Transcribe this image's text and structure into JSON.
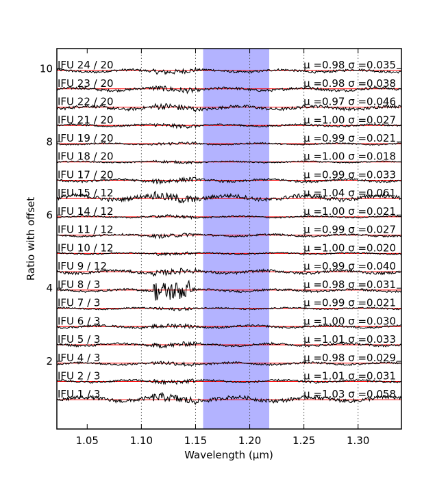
{
  "chart_data": {
    "type": "line",
    "title": "",
    "xlabel": "Wavelength (μm)",
    "ylabel": "Ratio with offset",
    "xlim": [
      1.022,
      1.34
    ],
    "ylim": [
      0.15,
      10.55
    ],
    "xticks": [
      1.05,
      1.1,
      1.15,
      1.2,
      1.25,
      1.3
    ],
    "xtick_labels": [
      "1.05",
      "1.10",
      "1.15",
      "1.20",
      "1.25",
      "1.30"
    ],
    "yticks": [
      2,
      4,
      6,
      8,
      10
    ],
    "ytick_labels": [
      "2",
      "4",
      "6",
      "8",
      "10"
    ],
    "vertical_dotted_lines_x": [
      1.1,
      1.15,
      1.2,
      1.25,
      1.3
    ],
    "shaded_band": {
      "x": [
        1.157,
        1.218
      ],
      "color": "#b3b3ff"
    },
    "reference_line_color": "#ff0000",
    "spectrum_color": "#000000",
    "grid": false,
    "series": [
      {
        "name": "IFU 24 / 20",
        "offset": 9.95,
        "stat": "μ =0.98 σ =0.035",
        "mu": 0.98,
        "sigma": 0.035
      },
      {
        "name": "IFU 23 / 20",
        "offset": 9.45,
        "stat": "μ =0.98 σ =0.038",
        "mu": 0.98,
        "sigma": 0.038
      },
      {
        "name": "IFU 22 / 20",
        "offset": 8.95,
        "stat": "μ =0.97 σ =0.046",
        "mu": 0.97,
        "sigma": 0.046
      },
      {
        "name": "IFU 21 / 20",
        "offset": 8.45,
        "stat": "μ =1.00 σ =0.027",
        "mu": 1.0,
        "sigma": 0.027
      },
      {
        "name": "IFU 19 / 20",
        "offset": 7.95,
        "stat": "μ =0.99 σ =0.021",
        "mu": 0.99,
        "sigma": 0.021
      },
      {
        "name": "IFU 18 / 20",
        "offset": 7.45,
        "stat": "μ =1.00 σ =0.018",
        "mu": 1.0,
        "sigma": 0.018
      },
      {
        "name": "IFU 17 / 20",
        "offset": 6.95,
        "stat": "μ =0.99 σ =0.033",
        "mu": 0.99,
        "sigma": 0.033
      },
      {
        "name": "IFU 15 / 12",
        "offset": 6.45,
        "stat": "μ =1.04 σ =0.061",
        "mu": 1.04,
        "sigma": 0.061
      },
      {
        "name": "IFU 14 / 12",
        "offset": 5.95,
        "stat": "μ =1.00 σ =0.021",
        "mu": 1.0,
        "sigma": 0.021
      },
      {
        "name": "IFU 11 / 12",
        "offset": 5.45,
        "stat": "μ =0.99 σ =0.027",
        "mu": 0.99,
        "sigma": 0.027
      },
      {
        "name": "IFU 10 / 12",
        "offset": 4.95,
        "stat": "μ =1.00 σ =0.020",
        "mu": 1.0,
        "sigma": 0.02
      },
      {
        "name": "IFU 9 / 12",
        "offset": 4.45,
        "stat": "μ =0.99 σ =0.040",
        "mu": 0.99,
        "sigma": 0.04
      },
      {
        "name": "IFU 8 / 3",
        "offset": 3.95,
        "stat": "μ =0.98 σ =0.031",
        "mu": 0.98,
        "sigma": 0.031
      },
      {
        "name": "IFU 7 / 3",
        "offset": 3.45,
        "stat": "μ =0.99 σ =0.021",
        "mu": 0.99,
        "sigma": 0.021
      },
      {
        "name": "IFU 6 / 3",
        "offset": 2.95,
        "stat": "μ =1.00 σ =0.030",
        "mu": 1.0,
        "sigma": 0.03
      },
      {
        "name": "IFU 5 / 3",
        "offset": 2.45,
        "stat": "μ =1.01 σ =0.033",
        "mu": 1.01,
        "sigma": 0.033
      },
      {
        "name": "IFU 4 / 3",
        "offset": 1.95,
        "stat": "μ =0.98 σ =0.029",
        "mu": 0.98,
        "sigma": 0.029
      },
      {
        "name": "IFU 2 / 3",
        "offset": 1.45,
        "stat": "μ =1.01 σ =0.031",
        "mu": 1.01,
        "sigma": 0.031
      },
      {
        "name": "IFU 1 / 3",
        "offset": 0.95,
        "stat": "μ =1.03 σ =0.058",
        "mu": 1.03,
        "sigma": 0.058
      }
    ]
  }
}
